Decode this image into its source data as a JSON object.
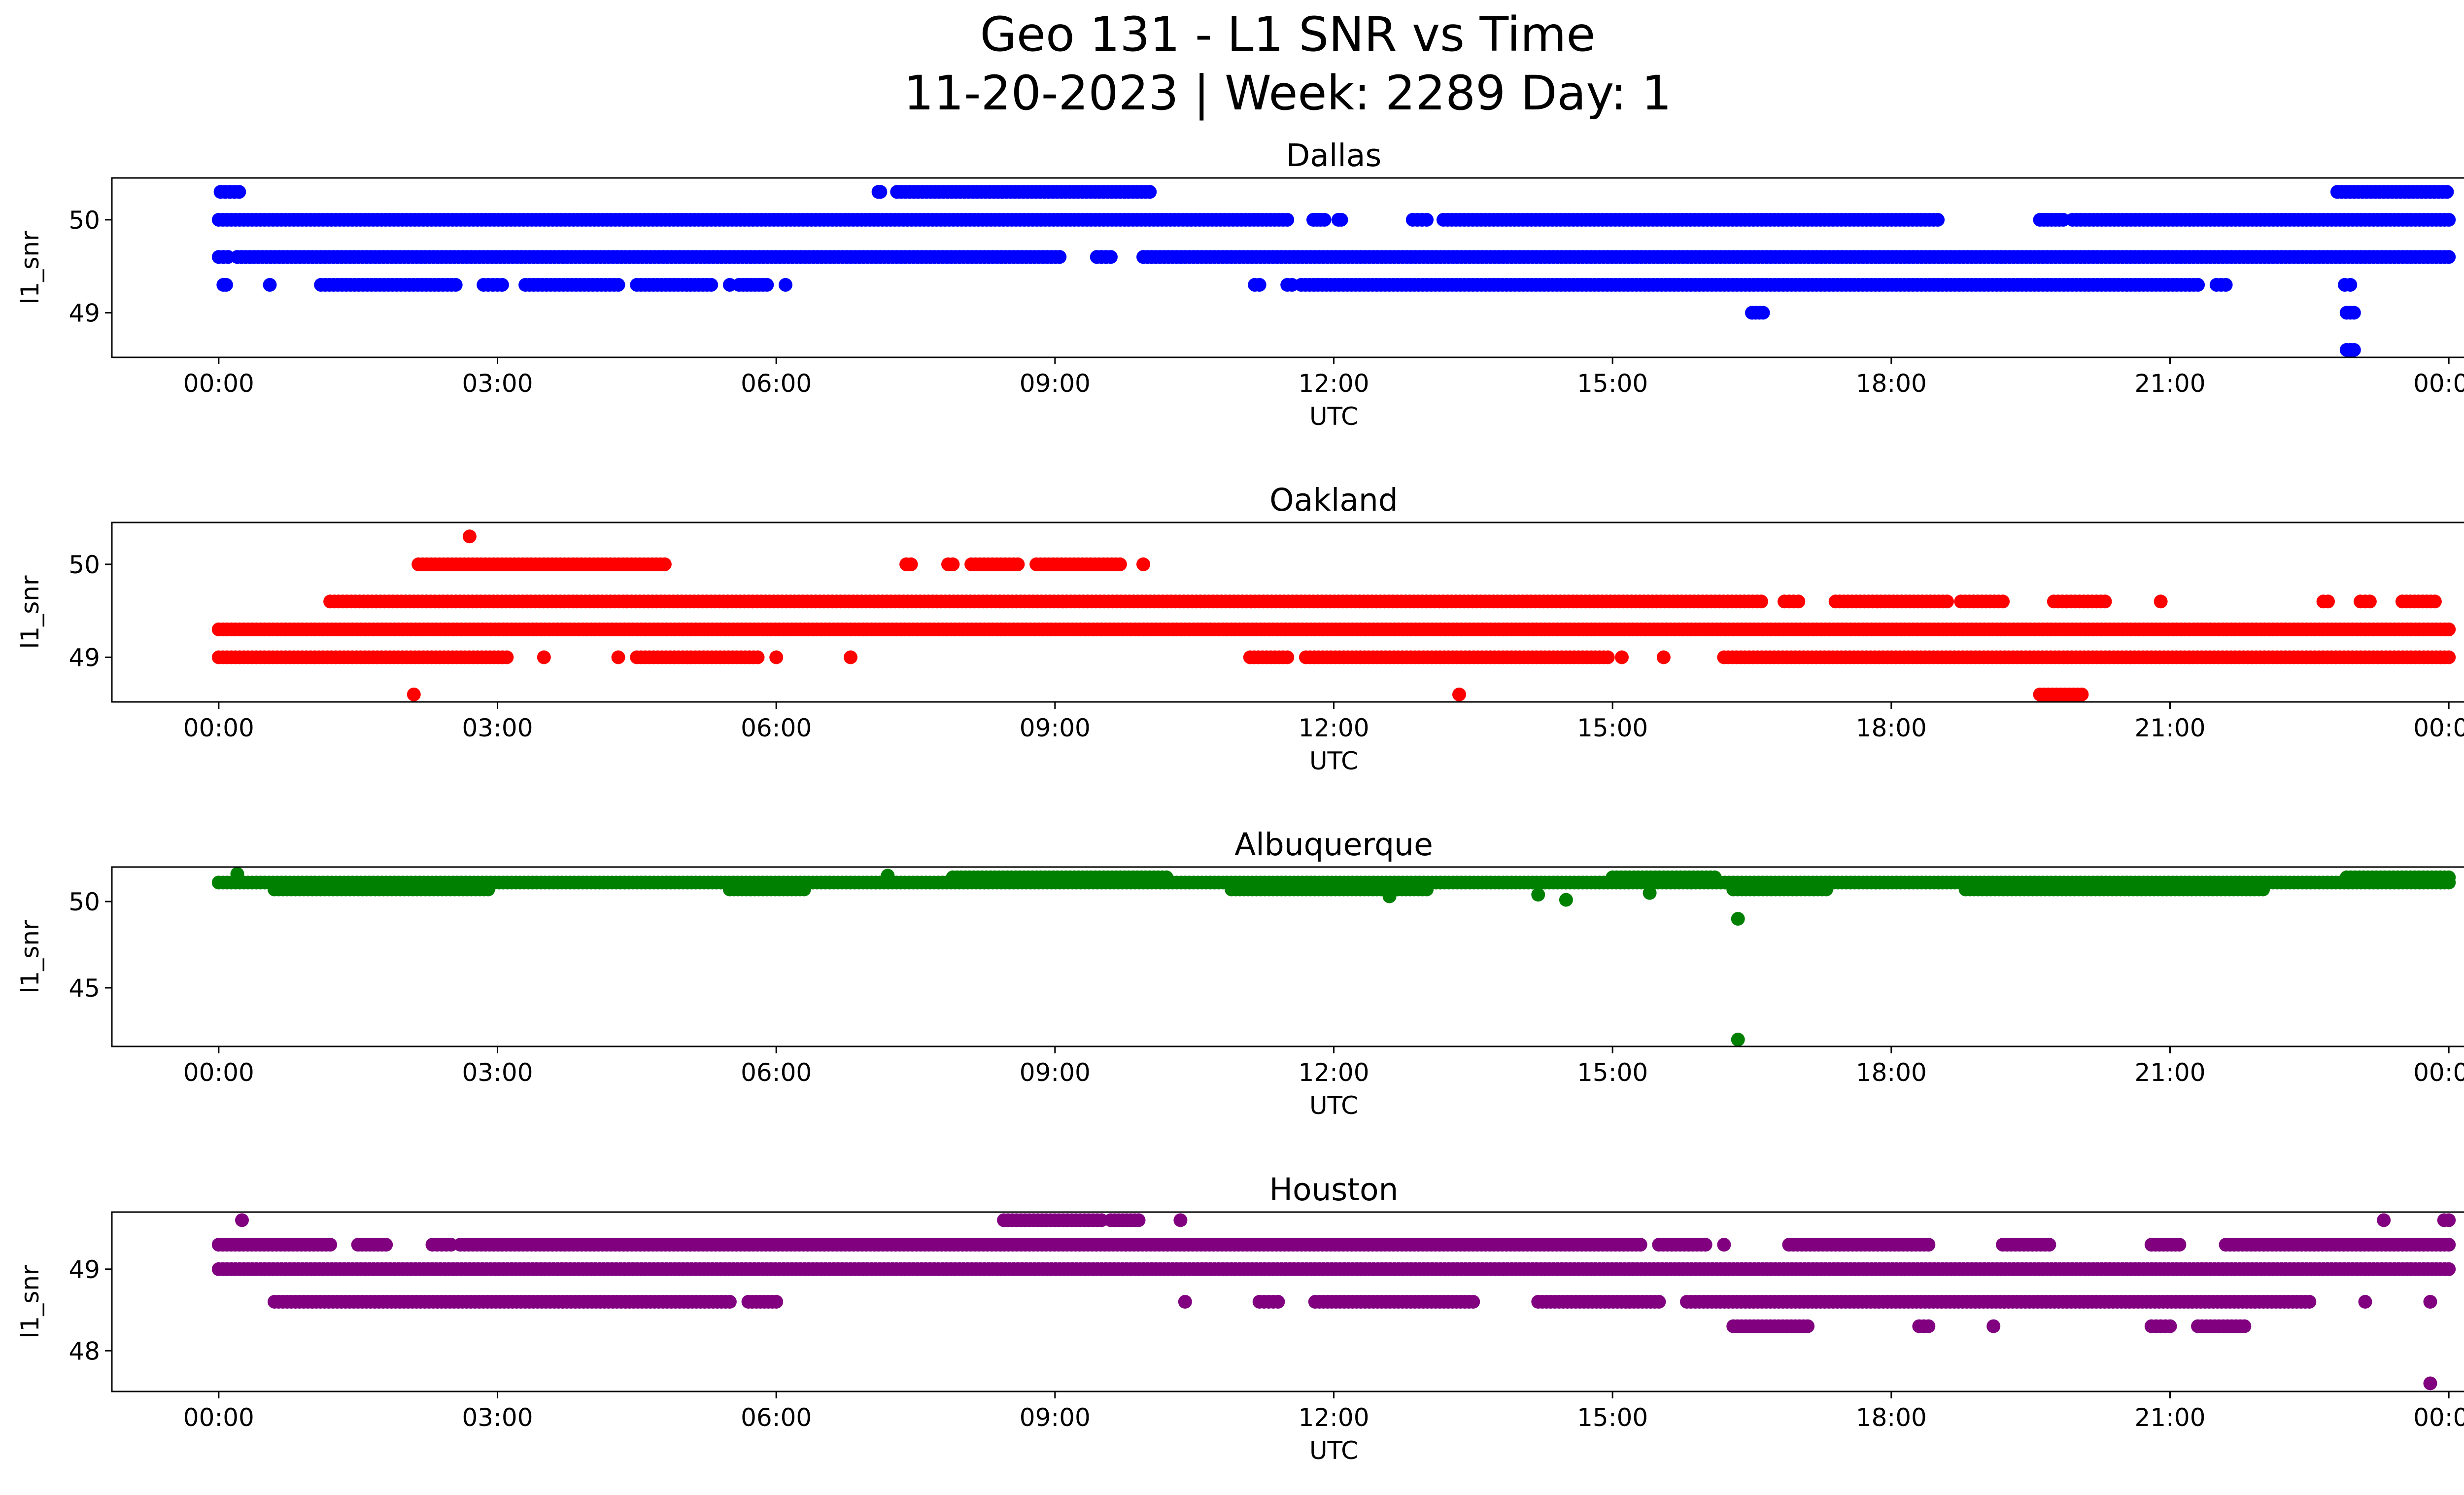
{
  "figure": {
    "title_line1": "Geo 131 - L1 SNR vs Time",
    "title_line2": "11-20-2023 | Week: 2289 Day: 1"
  },
  "chart_data": [
    {
      "type": "scatter",
      "title": "Dallas",
      "xlabel": "UTC",
      "ylabel": "l1_snr",
      "color": "#0000ff",
      "xlim_hours": [
        -1.15,
        25.15
      ],
      "ylim": [
        48.52,
        50.45
      ],
      "xticks_hours": [
        0,
        3,
        6,
        9,
        12,
        15,
        18,
        21,
        24
      ],
      "xtick_labels": [
        "00:00",
        "03:00",
        "06:00",
        "09:00",
        "12:00",
        "15:00",
        "18:00",
        "21:00",
        "00:00"
      ],
      "yticks": [
        49,
        50
      ],
      "ytick_labels": [
        "49",
        "50"
      ],
      "levels": [
        {
          "y": 50.3,
          "segments": [
            [
              0.02,
              0.22
            ],
            [
              7.1,
              7.12
            ],
            [
              7.3,
              10.02
            ],
            [
              22.8,
              23.98
            ]
          ]
        },
        {
          "y": 50.0,
          "segments": [
            [
              0.0,
              11.5
            ],
            [
              11.78,
              11.9
            ],
            [
              12.05,
              12.08
            ],
            [
              12.85,
              13.0
            ],
            [
              13.18,
              18.5
            ],
            [
              19.6,
              19.85
            ],
            [
              19.95,
              24.0
            ]
          ]
        },
        {
          "y": 49.6,
          "segments": [
            [
              0.0,
              0.1
            ],
            [
              0.2,
              9.05
            ],
            [
              9.45,
              9.6
            ],
            [
              9.95,
              24.0
            ]
          ]
        },
        {
          "y": 49.3,
          "segments": [
            [
              0.05,
              0.08
            ],
            [
              1.1,
              2.55
            ],
            [
              2.85,
              3.05
            ],
            [
              3.3,
              4.3
            ],
            [
              4.5,
              5.3
            ],
            [
              5.6,
              5.9
            ],
            [
              11.15,
              11.2
            ],
            [
              11.5,
              11.55
            ],
            [
              11.65,
              21.3
            ],
            [
              21.5,
              21.6
            ],
            [
              22.88,
              22.94
            ]
          ]
        },
        {
          "y": 49.0,
          "segments": [
            [
              16.5,
              16.62
            ],
            [
              22.9,
              22.98
            ]
          ]
        },
        {
          "y": 48.6,
          "segments": [
            [
              22.9,
              22.98
            ]
          ]
        }
      ],
      "isolated_points": [
        [
          0.55,
          49.3
        ],
        [
          5.5,
          49.3
        ],
        [
          6.1,
          49.3
        ]
      ]
    },
    {
      "type": "scatter",
      "title": "Oakland",
      "xlabel": "UTC",
      "ylabel": "l1_snr",
      "color": "#ff0000",
      "xlim_hours": [
        -1.15,
        25.15
      ],
      "ylim": [
        48.52,
        50.45
      ],
      "xticks_hours": [
        0,
        3,
        6,
        9,
        12,
        15,
        18,
        21,
        24
      ],
      "xtick_labels": [
        "00:00",
        "03:00",
        "06:00",
        "09:00",
        "12:00",
        "15:00",
        "18:00",
        "21:00",
        "00:00"
      ],
      "yticks": [
        49,
        50
      ],
      "ytick_labels": [
        "49",
        "50"
      ],
      "levels": [
        {
          "y": 50.0,
          "segments": [
            [
              2.15,
              4.8
            ],
            [
              7.4,
              7.45
            ],
            [
              7.85,
              7.9
            ],
            [
              8.1,
              8.6
            ],
            [
              8.8,
              9.7
            ]
          ]
        },
        {
          "y": 49.6,
          "segments": [
            [
              1.2,
              16.6
            ],
            [
              16.85,
              17.0
            ],
            [
              17.4,
              18.6
            ],
            [
              18.75,
              19.2
            ],
            [
              19.75,
              20.3
            ],
            [
              22.65,
              22.7
            ],
            [
              23.05,
              23.15
            ],
            [
              23.5,
              23.85
            ]
          ]
        },
        {
          "y": 49.3,
          "segments": [
            [
              0.0,
              24.0
            ]
          ]
        },
        {
          "y": 49.0,
          "segments": [
            [
              0.0,
              3.1
            ],
            [
              4.5,
              5.8
            ],
            [
              11.1,
              11.5
            ],
            [
              11.7,
              14.95
            ],
            [
              16.2,
              24.0
            ]
          ]
        },
        {
          "y": 48.6,
          "segments": [
            [
              19.6,
              20.05
            ]
          ]
        }
      ],
      "isolated_points": [
        [
          2.7,
          50.3
        ],
        [
          3.5,
          49.0
        ],
        [
          4.3,
          49.0
        ],
        [
          6.0,
          49.0
        ],
        [
          6.8,
          49.0
        ],
        [
          2.1,
          48.6
        ],
        [
          9.95,
          50.0
        ],
        [
          13.35,
          48.6
        ],
        [
          15.1,
          49.0
        ],
        [
          15.55,
          49.0
        ],
        [
          20.9,
          49.6
        ]
      ]
    },
    {
      "type": "scatter",
      "title": "Albuquerque",
      "xlabel": "UTC",
      "ylabel": "l1_snr",
      "color": "#008000",
      "xlim_hours": [
        -1.15,
        25.15
      ],
      "ylim": [
        41.6,
        52.0
      ],
      "xticks_hours": [
        0,
        3,
        6,
        9,
        12,
        15,
        18,
        21,
        24
      ],
      "xtick_labels": [
        "00:00",
        "03:00",
        "06:00",
        "09:00",
        "12:00",
        "15:00",
        "18:00",
        "21:00",
        "00:00"
      ],
      "yticks": [
        45,
        50
      ],
      "ytick_labels": [
        "45",
        "50"
      ],
      "levels": [
        {
          "y": 51.1,
          "segments": [
            [
              0.0,
              24.0
            ]
          ]
        },
        {
          "y": 51.4,
          "segments": [
            [
              7.9,
              10.2
            ],
            [
              15.0,
              16.1
            ],
            [
              22.9,
              24.0
            ]
          ]
        },
        {
          "y": 50.7,
          "segments": [
            [
              0.6,
              2.9
            ],
            [
              5.5,
              6.3
            ],
            [
              10.9,
              13.0
            ],
            [
              16.3,
              17.3
            ],
            [
              18.8,
              22.0
            ]
          ]
        }
      ],
      "isolated_points": [
        [
          0.2,
          51.6
        ],
        [
          7.2,
          51.5
        ],
        [
          12.6,
          50.3
        ],
        [
          14.2,
          50.4
        ],
        [
          14.5,
          50.1
        ],
        [
          15.4,
          50.5
        ],
        [
          16.35,
          49.0
        ],
        [
          16.35,
          42.0
        ]
      ]
    },
    {
      "type": "scatter",
      "title": "Houston",
      "xlabel": "UTC",
      "ylabel": "l1_snr",
      "color": "#800080",
      "xlim_hours": [
        -1.15,
        25.15
      ],
      "ylim": [
        47.5,
        49.7
      ],
      "xticks_hours": [
        0,
        3,
        6,
        9,
        12,
        15,
        18,
        21,
        24
      ],
      "xtick_labels": [
        "00:00",
        "03:00",
        "06:00",
        "09:00",
        "12:00",
        "15:00",
        "18:00",
        "21:00",
        "00:00"
      ],
      "yticks": [
        48,
        49
      ],
      "ytick_labels": [
        "48",
        "49"
      ],
      "levels": [
        {
          "y": 49.6,
          "segments": [
            [
              8.45,
              9.5
            ],
            [
              9.6,
              9.9
            ],
            [
              23.95,
              24.0
            ]
          ]
        },
        {
          "y": 49.3,
          "segments": [
            [
              0.0,
              1.2
            ],
            [
              1.5,
              1.8
            ],
            [
              2.3,
              2.5
            ],
            [
              2.6,
              15.3
            ],
            [
              15.5,
              16.0
            ],
            [
              16.9,
              18.4
            ],
            [
              19.2,
              19.7
            ],
            [
              20.8,
              21.1
            ],
            [
              21.6,
              24.0
            ]
          ]
        },
        {
          "y": 49.0,
          "segments": [
            [
              0.0,
              24.0
            ]
          ]
        },
        {
          "y": 48.6,
          "segments": [
            [
              0.6,
              5.5
            ],
            [
              5.7,
              6.0
            ],
            [
              11.2,
              11.4
            ],
            [
              11.8,
              13.5
            ],
            [
              14.2,
              15.5
            ],
            [
              15.8,
              22.5
            ]
          ]
        },
        {
          "y": 48.3,
          "segments": [
            [
              16.3,
              17.1
            ],
            [
              18.3,
              18.4
            ],
            [
              20.8,
              21.0
            ],
            [
              21.3,
              21.8
            ]
          ]
        }
      ],
      "isolated_points": [
        [
          0.25,
          49.6
        ],
        [
          10.35,
          49.6
        ],
        [
          10.4,
          48.6
        ],
        [
          16.2,
          49.3
        ],
        [
          19.1,
          48.3
        ],
        [
          23.3,
          49.6
        ],
        [
          23.1,
          48.6
        ],
        [
          23.8,
          48.6
        ],
        [
          23.8,
          47.6
        ]
      ]
    }
  ]
}
